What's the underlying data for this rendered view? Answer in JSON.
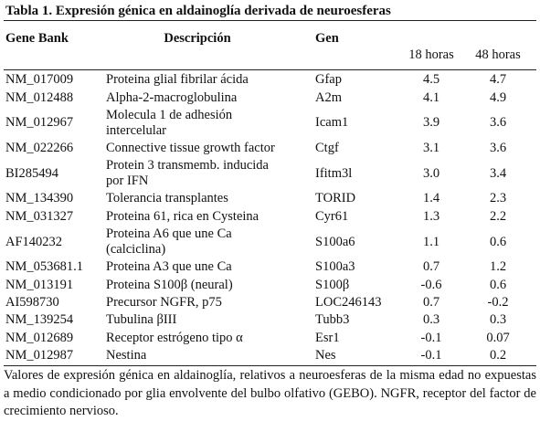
{
  "table": {
    "title": "Tabla 1. Expresión génica en aldainoglía derivada de neuroesferas",
    "header": [
      "Gene Bank",
      "Descripción",
      "Gen",
      "18 horas",
      "48 horas"
    ],
    "rows": [
      [
        "NM_017009",
        "Proteina glial fibrilar ácida",
        "Gfap",
        "4.5",
        "4.7"
      ],
      [
        "NM_012488",
        "Alpha-2-macroglobulina",
        "A2m",
        "4.1",
        "4.9"
      ],
      [
        "NM_012967",
        "Molecula 1 de adhesión\nintercelular",
        "Icam1",
        "3.9",
        "3.6"
      ],
      [
        "NM_022266",
        "Connective tissue growth factor",
        "Ctgf",
        "3.1",
        "3.6"
      ],
      [
        "BI285494",
        "Protein 3 transmemb. inducida\npor IFN",
        "Ifitm3l",
        "3.0",
        "3.4"
      ],
      [
        "NM_134390",
        "Tolerancia transplantes",
        "TORID",
        "1.4",
        "2.3"
      ],
      [
        "NM_031327",
        "Proteina 61, rica en Cysteina",
        "Cyr61",
        "1.3",
        "2.2"
      ],
      [
        "AF140232",
        "Proteina A6 que une Ca\n(calciclina)",
        "S100a6",
        "1.1",
        "0.6"
      ],
      [
        "NM_053681.1",
        "Proteina A3 que une Ca",
        "S100a3",
        "0.7",
        "1.2"
      ],
      [
        "NM_013191",
        "Proteina S100β (neural)",
        "S100β",
        "-0.6",
        "0.6"
      ],
      [
        "AI598730",
        "Precursor NGFR, p75",
        "LOC246143",
        "0.7",
        "-0.2"
      ],
      [
        "NM_139254",
        "Tubulina βIII",
        "Tubb3",
        "0.3",
        "0.3"
      ],
      [
        "NM_012689",
        "Receptor estrógeno tipo α",
        "Esr1",
        "-0.1",
        "0.07"
      ],
      [
        "NM_012987",
        "Nestina",
        "Nes",
        "-0.1",
        "0.2"
      ]
    ],
    "footnote": "Valores de expresión génica en aldainoglía, relativos a neuroesferas de la misma edad no expuestas a medio condicionado por glia envolvente del bulbo olfativo (GEBO). NGFR, receptor del factor de crecimiento nervioso."
  }
}
